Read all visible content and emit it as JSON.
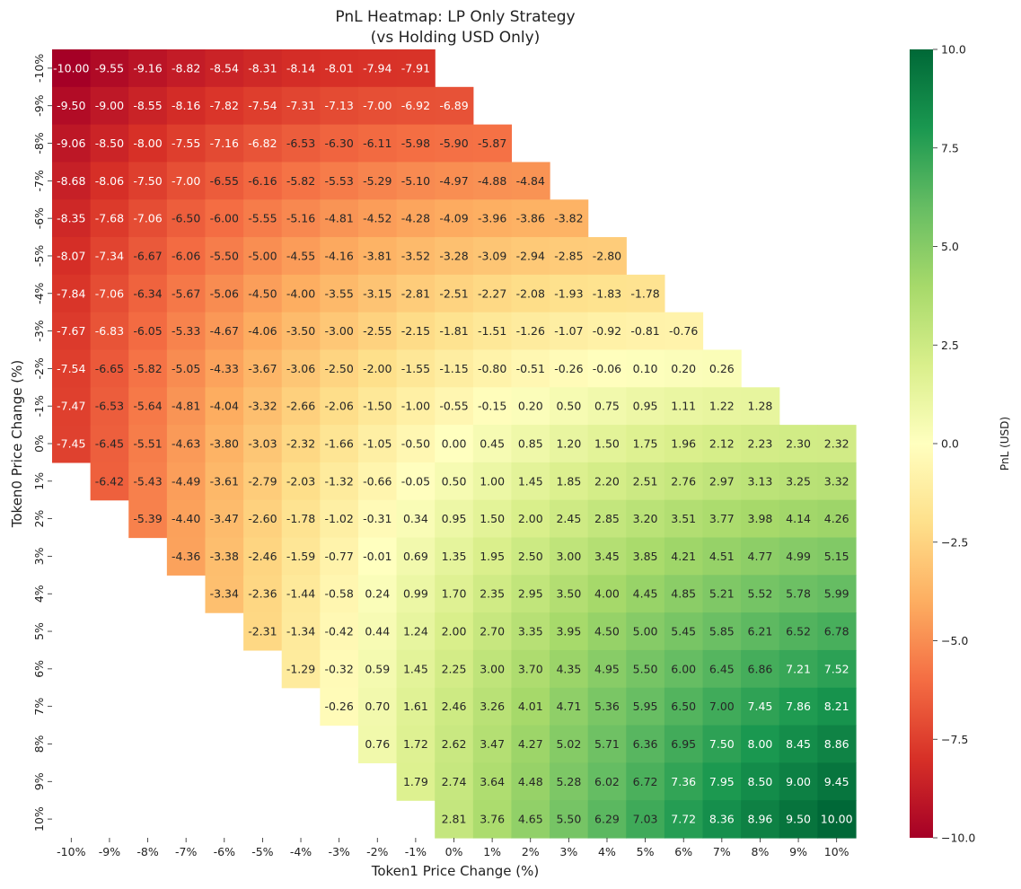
{
  "chart_data": {
    "type": "heatmap",
    "title": "PnL Heatmap: LP Only Strategy",
    "subtitle": "(vs Holding USD Only)",
    "xlabel": "Token1 Price Change (%)",
    "ylabel": "Token0 Price Change (%)",
    "x_categories": [
      "-10%",
      "-9%",
      "-8%",
      "-7%",
      "-6%",
      "-5%",
      "-4%",
      "-3%",
      "-2%",
      "-1%",
      "0%",
      "1%",
      "2%",
      "3%",
      "4%",
      "5%",
      "6%",
      "7%",
      "8%",
      "9%",
      "10%"
    ],
    "y_categories": [
      "-10%",
      "-9%",
      "-8%",
      "-7%",
      "-6%",
      "-5%",
      "-4%",
      "-3%",
      "-2%",
      "-1%",
      "0%",
      "1%",
      "2%",
      "3%",
      "4%",
      "5%",
      "6%",
      "7%",
      "8%",
      "9%",
      "10%"
    ],
    "values": [
      [
        -10.0,
        -9.55,
        -9.16,
        -8.82,
        -8.54,
        -8.31,
        -8.14,
        -8.01,
        -7.94,
        -7.91,
        null,
        null,
        null,
        null,
        null,
        null,
        null,
        null,
        null,
        null,
        null
      ],
      [
        -9.5,
        -9.0,
        -8.55,
        -8.16,
        -7.82,
        -7.54,
        -7.31,
        -7.13,
        -7.0,
        -6.92,
        -6.89,
        null,
        null,
        null,
        null,
        null,
        null,
        null,
        null,
        null,
        null
      ],
      [
        -9.06,
        -8.5,
        -8.0,
        -7.55,
        -7.16,
        -6.82,
        -6.53,
        -6.3,
        -6.11,
        -5.98,
        -5.9,
        -5.87,
        null,
        null,
        null,
        null,
        null,
        null,
        null,
        null,
        null
      ],
      [
        -8.68,
        -8.06,
        -7.5,
        -7.0,
        -6.55,
        -6.16,
        -5.82,
        -5.53,
        -5.29,
        -5.1,
        -4.97,
        -4.88,
        -4.84,
        null,
        null,
        null,
        null,
        null,
        null,
        null,
        null
      ],
      [
        -8.35,
        -7.68,
        -7.06,
        -6.5,
        -6.0,
        -5.55,
        -5.16,
        -4.81,
        -4.52,
        -4.28,
        -4.09,
        -3.96,
        -3.86,
        -3.82,
        null,
        null,
        null,
        null,
        null,
        null,
        null
      ],
      [
        -8.07,
        -7.34,
        -6.67,
        -6.06,
        -5.5,
        -5.0,
        -4.55,
        -4.16,
        -3.81,
        -3.52,
        -3.28,
        -3.09,
        -2.94,
        -2.85,
        -2.8,
        null,
        null,
        null,
        null,
        null,
        null
      ],
      [
        -7.84,
        -7.06,
        -6.34,
        -5.67,
        -5.06,
        -4.5,
        -4.0,
        -3.55,
        -3.15,
        -2.81,
        -2.51,
        -2.27,
        -2.08,
        -1.93,
        -1.83,
        -1.78,
        null,
        null,
        null,
        null,
        null
      ],
      [
        -7.67,
        -6.83,
        -6.05,
        -5.33,
        -4.67,
        -4.06,
        -3.5,
        -3.0,
        -2.55,
        -2.15,
        -1.81,
        -1.51,
        -1.26,
        -1.07,
        -0.92,
        -0.81,
        -0.76,
        null,
        null,
        null,
        null
      ],
      [
        -7.54,
        -6.65,
        -5.82,
        -5.05,
        -4.33,
        -3.67,
        -3.06,
        -2.5,
        -2.0,
        -1.55,
        -1.15,
        -0.8,
        -0.51,
        -0.26,
        -0.06,
        0.1,
        0.2,
        0.26,
        null,
        null,
        null
      ],
      [
        -7.47,
        -6.53,
        -5.64,
        -4.81,
        -4.04,
        -3.32,
        -2.66,
        -2.06,
        -1.5,
        -1.0,
        -0.55,
        -0.15,
        0.2,
        0.5,
        0.75,
        0.95,
        1.11,
        1.22,
        1.28,
        null,
        null
      ],
      [
        -7.45,
        -6.45,
        -5.51,
        -4.63,
        -3.8,
        -3.03,
        -2.32,
        -1.66,
        -1.05,
        -0.5,
        0.0,
        0.45,
        0.85,
        1.2,
        1.5,
        1.75,
        1.96,
        2.12,
        2.23,
        2.3,
        2.32
      ],
      [
        null,
        -6.42,
        -5.43,
        -4.49,
        -3.61,
        -2.79,
        -2.03,
        -1.32,
        -0.66,
        -0.05,
        0.5,
        1.0,
        1.45,
        1.85,
        2.2,
        2.51,
        2.76,
        2.97,
        3.13,
        3.25,
        3.32
      ],
      [
        null,
        null,
        -5.39,
        -4.4,
        -3.47,
        -2.6,
        -1.78,
        -1.02,
        -0.31,
        0.34,
        0.95,
        1.5,
        2.0,
        2.45,
        2.85,
        3.2,
        3.51,
        3.77,
        3.98,
        4.14,
        4.26
      ],
      [
        null,
        null,
        null,
        -4.36,
        -3.38,
        -2.46,
        -1.59,
        -0.77,
        -0.01,
        0.69,
        1.35,
        1.95,
        2.5,
        3.0,
        3.45,
        3.85,
        4.21,
        4.51,
        4.77,
        4.99,
        5.15
      ],
      [
        null,
        null,
        null,
        null,
        -3.34,
        -2.36,
        -1.44,
        -0.58,
        0.24,
        0.99,
        1.7,
        2.35,
        2.95,
        3.5,
        4.0,
        4.45,
        4.85,
        5.21,
        5.52,
        5.78,
        5.99
      ],
      [
        null,
        null,
        null,
        null,
        null,
        -2.31,
        -1.34,
        -0.42,
        0.44,
        1.24,
        2.0,
        2.7,
        3.35,
        3.95,
        4.5,
        5.0,
        5.45,
        5.85,
        6.21,
        6.52,
        6.78
      ],
      [
        null,
        null,
        null,
        null,
        null,
        null,
        -1.29,
        -0.32,
        0.59,
        1.45,
        2.25,
        3.0,
        3.7,
        4.35,
        4.95,
        5.5,
        6.0,
        6.45,
        6.86,
        7.21,
        7.52
      ],
      [
        null,
        null,
        null,
        null,
        null,
        null,
        null,
        -0.26,
        0.7,
        1.61,
        2.46,
        3.26,
        4.01,
        4.71,
        5.36,
        5.95,
        6.5,
        7.0,
        7.45,
        7.86,
        8.21
      ],
      [
        null,
        null,
        null,
        null,
        null,
        null,
        null,
        null,
        0.76,
        1.72,
        2.62,
        3.47,
        4.27,
        5.02,
        5.71,
        6.36,
        6.95,
        7.5,
        8.0,
        8.45,
        8.86
      ],
      [
        null,
        null,
        null,
        null,
        null,
        null,
        null,
        null,
        null,
        1.79,
        2.74,
        3.64,
        4.48,
        5.28,
        6.02,
        6.72,
        7.36,
        7.95,
        8.5,
        9.0,
        9.45
      ],
      [
        null,
        null,
        null,
        null,
        null,
        null,
        null,
        null,
        null,
        null,
        2.81,
        3.76,
        4.65,
        5.5,
        6.29,
        7.03,
        7.72,
        8.36,
        8.96,
        9.5,
        10.0
      ]
    ],
    "value_labels": [
      [
        "-10.00",
        "-9.55",
        "-9.16",
        "-8.82",
        "-8.54",
        "-8.31",
        "-8.14",
        "-8.01",
        "-7.94",
        "-7.91",
        "",
        "",
        "",
        "",
        "",
        "",
        "",
        "",
        "",
        "",
        ""
      ],
      [
        "-9.50",
        "-9.00",
        "-8.55",
        "-8.16",
        "-7.82",
        "-7.54",
        "-7.31",
        "-7.13",
        "-7.00",
        "-6.92",
        "-6.89",
        "",
        "",
        "",
        "",
        "",
        "",
        "",
        "",
        "",
        ""
      ],
      [
        "-9.06",
        "-8.50",
        "-8.00",
        "-7.55",
        "-7.16",
        "-6.82",
        "-6.53",
        "-6.30",
        "-6.11",
        "-5.98",
        "-5.90",
        "-5.87",
        "",
        "",
        "",
        "",
        "",
        "",
        "",
        "",
        ""
      ],
      [
        "-8.68",
        "-8.06",
        "-7.50",
        "-7.00",
        "-6.55",
        "-6.16",
        "-5.82",
        "-5.53",
        "-5.29",
        "-5.10",
        "-4.97",
        "-4.88",
        "-4.84",
        "",
        "",
        "",
        "",
        "",
        "",
        "",
        ""
      ],
      [
        "-8.35",
        "-7.68",
        "-7.06",
        "-6.50",
        "-6.00",
        "-5.55",
        "-5.16",
        "-4.81",
        "-4.52",
        "-4.28",
        "-4.09",
        "-3.96",
        "-3.86",
        "-3.82",
        "",
        "",
        "",
        "",
        "",
        "",
        ""
      ],
      [
        "-8.07",
        "-7.34",
        "-6.67",
        "-6.06",
        "-5.50",
        "-5.00",
        "-4.55",
        "-4.16",
        "-3.81",
        "-3.52",
        "-3.28",
        "-3.09",
        "-2.94",
        "-2.85",
        "-2.80",
        "",
        "",
        "",
        "",
        "",
        ""
      ],
      [
        "-7.84",
        "-7.06",
        "-6.34",
        "-5.67",
        "-5.06",
        "-4.50",
        "-4.00",
        "-3.55",
        "-3.15",
        "-2.81",
        "-2.51",
        "-2.27",
        "-2.08",
        "-1.93",
        "-1.83",
        "-1.78",
        "",
        "",
        "",
        "",
        ""
      ],
      [
        "-7.67",
        "-6.83",
        "-6.05",
        "-5.33",
        "-4.67",
        "-4.06",
        "-3.50",
        "-3.00",
        "-2.55",
        "-2.15",
        "-1.81",
        "-1.51",
        "-1.26",
        "-1.07",
        "-0.92",
        "-0.81",
        "-0.76",
        "",
        "",
        "",
        ""
      ],
      [
        "-7.54",
        "-6.65",
        "-5.82",
        "-5.05",
        "-4.33",
        "-3.67",
        "-3.06",
        "-2.50",
        "-2.00",
        "-1.55",
        "-1.15",
        "-0.80",
        "-0.51",
        "-0.26",
        "-0.06",
        "0.10",
        "0.20",
        "0.26",
        "",
        "",
        ""
      ],
      [
        "-7.47",
        "-6.53",
        "-5.64",
        "-4.81",
        "-4.04",
        "-3.32",
        "-2.66",
        "-2.06",
        "-1.50",
        "-1.00",
        "-0.55",
        "-0.15",
        "0.20",
        "0.50",
        "0.75",
        "0.95",
        "1.11",
        "1.22",
        "1.28",
        "",
        ""
      ],
      [
        "-7.45",
        "-6.45",
        "-5.51",
        "-4.63",
        "-3.80",
        "-3.03",
        "-2.32",
        "-1.66",
        "-1.05",
        "-0.50",
        "0.00",
        "0.45",
        "0.85",
        "1.20",
        "1.50",
        "1.75",
        "1.96",
        "2.12",
        "2.23",
        "2.30",
        "2.32"
      ],
      [
        "",
        "-6.42",
        "-5.43",
        "-4.49",
        "-3.61",
        "-2.79",
        "-2.03",
        "-1.32",
        "-0.66",
        "-0.05",
        "0.50",
        "1.00",
        "1.45",
        "1.85",
        "2.20",
        "2.51",
        "2.76",
        "2.97",
        "3.13",
        "3.25",
        "3.32"
      ],
      [
        "",
        "",
        "-5.39",
        "-4.40",
        "-3.47",
        "-2.60",
        "-1.78",
        "-1.02",
        "-0.31",
        "0.34",
        "0.95",
        "1.50",
        "2.00",
        "2.45",
        "2.85",
        "3.20",
        "3.51",
        "3.77",
        "3.98",
        "4.14",
        "4.26"
      ],
      [
        "",
        "",
        "",
        "-4.36",
        "-3.38",
        "-2.46",
        "-1.59",
        "-0.77",
        "-0.01",
        "0.69",
        "1.35",
        "1.95",
        "2.50",
        "3.00",
        "3.45",
        "3.85",
        "4.21",
        "4.51",
        "4.77",
        "4.99",
        "5.15"
      ],
      [
        "",
        "",
        "",
        "",
        "-3.34",
        "-2.36",
        "-1.44",
        "-0.58",
        "0.24",
        "0.99",
        "1.70",
        "2.35",
        "2.95",
        "3.50",
        "4.00",
        "4.45",
        "4.85",
        "5.21",
        "5.52",
        "5.78",
        "5.99"
      ],
      [
        "",
        "",
        "",
        "",
        "",
        "-2.31",
        "-1.34",
        "-0.42",
        "0.44",
        "1.24",
        "2.00",
        "2.70",
        "3.35",
        "3.95",
        "4.50",
        "5.00",
        "5.45",
        "5.85",
        "6.21",
        "6.52",
        "6.78"
      ],
      [
        "",
        "",
        "",
        "",
        "",
        "",
        "-1.29",
        "-0.32",
        "0.59",
        "1.45",
        "2.25",
        "3.00",
        "3.70",
        "4.35",
        "4.95",
        "5.50",
        "6.00",
        "6.45",
        "6.86",
        "7.21",
        "7.52"
      ],
      [
        "",
        "",
        "",
        "",
        "",
        "",
        "",
        "-0.26",
        "0.70",
        "1.61",
        "2.46",
        "3.26",
        "4.01",
        "4.71",
        "5.36",
        "5.95",
        "6.50",
        "7.00",
        "7.45",
        "7.86",
        "8.21"
      ],
      [
        "",
        "",
        "",
        "",
        "",
        "",
        "",
        "",
        "0.76",
        "1.72",
        "2.62",
        "3.47",
        "4.27",
        "5.02",
        "5.71",
        "6.36",
        "6.95",
        "7.50",
        "8.00",
        "8.45",
        "8.86"
      ],
      [
        "",
        "",
        "",
        "",
        "",
        "",
        "",
        "",
        "",
        "1.79",
        "2.74",
        "3.64",
        "4.48",
        "5.28",
        "6.02",
        "6.72",
        "7.36",
        "7.95",
        "8.50",
        "9.00",
        "9.45"
      ],
      [
        "",
        "",
        "",
        "",
        "",
        "",
        "",
        "",
        "",
        "",
        "2.81",
        "3.76",
        "4.65",
        "5.50",
        "6.29",
        "7.03",
        "7.72",
        "8.36",
        "8.96",
        "9.50",
        "10.00"
      ]
    ],
    "colorbar": {
      "label": "PnL (USD)",
      "range": [
        -10,
        10
      ],
      "colormap": "RdYlGn",
      "ticks": [
        -10,
        -7.5,
        -5,
        -2.5,
        0,
        2.5,
        5,
        7.5,
        10
      ],
      "tick_labels": [
        "−10.0",
        "−7.5",
        "−5.0",
        "−2.5",
        "0.0",
        "2.5",
        "5.0",
        "7.5",
        "10.0"
      ]
    },
    "grid": false
  }
}
